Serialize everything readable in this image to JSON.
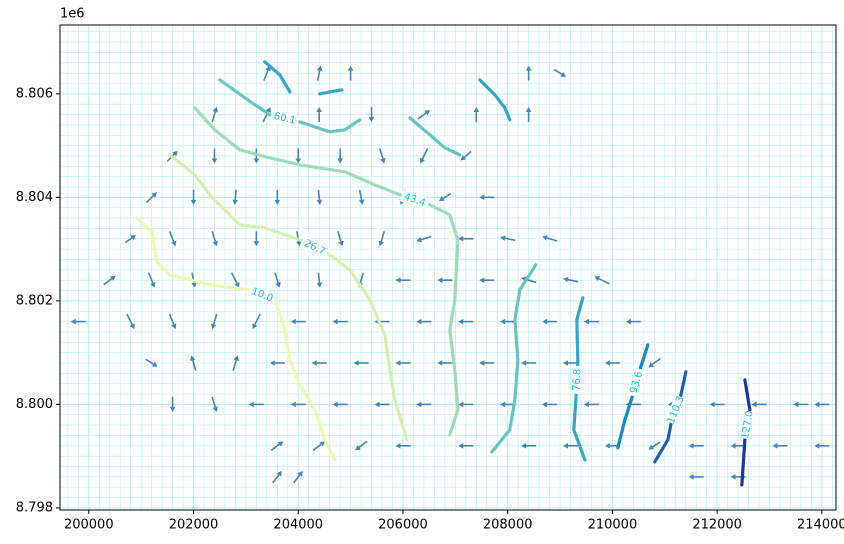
{
  "chart_data": {
    "type": "contour-quiver",
    "y_offset_label": "1e6",
    "xlim": [
      199450,
      214270
    ],
    "ylim": [
      8797960,
      8807330
    ],
    "xticks": [
      200000,
      202000,
      204000,
      206000,
      208000,
      210000,
      212000,
      214000
    ],
    "yticks": [
      {
        "value": 8798000,
        "label": "8.798"
      },
      {
        "value": 8800000,
        "label": "8.800"
      },
      {
        "value": 8802000,
        "label": "8.802"
      },
      {
        "value": 8804000,
        "label": "8.804"
      },
      {
        "value": 8806000,
        "label": "8.806"
      }
    ],
    "grid": true,
    "grid_color": "#b8eeee",
    "label_color": "#14c4d8",
    "arrow_color": "#4682b4",
    "series": [
      {
        "name": "10.0",
        "color": "#edf8b1",
        "x": [
          200917,
          201203,
          201299,
          201547,
          202311,
          203075,
          203552,
          203743,
          203839,
          204030,
          204317,
          204508,
          204699
        ],
        "y": [
          8803604,
          8803334,
          8802754,
          8802503,
          8802310,
          8802213,
          8802020,
          8801441,
          8800861,
          8800378,
          8799895,
          8799315,
          8798929
        ]
      },
      {
        "name": "26.7",
        "color": "#d3eeb0",
        "x": [
          201547,
          202024,
          202311,
          202884,
          203362,
          204030,
          204603,
          204985,
          205367,
          205654,
          205749,
          205845,
          206074
        ],
        "y": [
          8804821,
          8804435,
          8804049,
          8803469,
          8803411,
          8803179,
          8802889,
          8802600,
          8802020,
          8801344,
          8800668,
          8800088,
          8799315
        ]
      },
      {
        "name": "43.4",
        "color": "#9fd9bb",
        "x": [
          202024,
          202406,
          202884,
          203457,
          204030,
          204890,
          205462,
          205940,
          206513,
          206895,
          207048,
          206990,
          206895,
          206990,
          207048,
          206895
        ],
        "y": [
          8805729,
          8805304,
          8804918,
          8804763,
          8804628,
          8804493,
          8804242,
          8804049,
          8803855,
          8803662,
          8803179,
          8802020,
          8801441,
          8800668,
          8799895,
          8799412
        ]
      },
      {
        "name": "60.1",
        "color": "#68c2bf",
        "x": [
          202502,
          202980,
          203457,
          204030,
          204603,
          204890,
          205176,
          null,
          206131,
          206513,
          206800,
          207086,
          null,
          207697,
          208041,
          208137,
          208194,
          208137,
          208232,
          208538
        ],
        "y": [
          8806270,
          8805923,
          8805594,
          8805459,
          8805266,
          8805304,
          8805498,
          null,
          8805536,
          8805208,
          8804957,
          8804821,
          null,
          8799083,
          8799508,
          8800088,
          8800861,
          8801634,
          8802213,
          8802697
        ]
      },
      {
        "name": "76.8",
        "color": "#35a5c2",
        "x": [
          203361,
          203648,
          203839,
          null,
          204412,
          204833,
          null,
          207468,
          207755,
          207946,
          208041,
          null,
          209435,
          209320,
          209340,
          209302,
          209263,
          209474
        ],
        "y": [
          8806618,
          8806367,
          8806039,
          null,
          8806000,
          8806077,
          null,
          8806270,
          8805981,
          8805729,
          8805498,
          null,
          8802059,
          8801634,
          8800861,
          8800088,
          8799508,
          8798929
        ]
      },
      {
        "name": "93.6",
        "color": "#1d86bd",
        "x": [
          210677,
          210524,
          210390,
          210238,
          210104
        ],
        "y": [
          8801151,
          8800668,
          8800185,
          8799702,
          8799161
        ]
      },
      {
        "name": "110.3",
        "color": "#225ea8",
        "x": [
          211403,
          211288,
          211135,
          211059,
          210810
        ],
        "y": [
          8800629,
          8800088,
          8799702,
          8799315,
          8798890
        ]
      },
      {
        "name": "127.0",
        "color": "#253494",
        "x": [
          212530,
          212625,
          212530,
          212472
        ],
        "y": [
          8800474,
          8799895,
          8799315,
          8798446
        ]
      }
    ],
    "quiver": [
      [
        203400,
        8806400,
        0.4,
        1
      ],
      [
        204400,
        8806400,
        0.2,
        1
      ],
      [
        205000,
        8806400,
        0,
        1
      ],
      [
        208400,
        8806400,
        0,
        1
      ],
      [
        209000,
        8806400,
        0.8,
        -0.5
      ],
      [
        202400,
        8805600,
        0.3,
        1
      ],
      [
        203400,
        8805600,
        0.5,
        1
      ],
      [
        204400,
        8805600,
        0,
        1
      ],
      [
        205400,
        8805600,
        0,
        -1
      ],
      [
        206400,
        8805600,
        0.8,
        0.6
      ],
      [
        207400,
        8805600,
        0,
        1
      ],
      [
        208400,
        8805600,
        0,
        1
      ],
      [
        201600,
        8804800,
        0.7,
        0.7
      ],
      [
        202400,
        8804800,
        0,
        -1
      ],
      [
        203200,
        8804800,
        0,
        -1
      ],
      [
        204000,
        8804800,
        0,
        -1
      ],
      [
        204800,
        8804800,
        0,
        -1
      ],
      [
        205600,
        8804800,
        0.3,
        -1
      ],
      [
        206400,
        8804800,
        -0.5,
        -1
      ],
      [
        207200,
        8804800,
        -0.7,
        -0.6
      ],
      [
        201200,
        8804000,
        0.7,
        0.7
      ],
      [
        202000,
        8804000,
        0,
        -1
      ],
      [
        202800,
        8804000,
        -0.1,
        -1
      ],
      [
        203600,
        8804000,
        0,
        -1
      ],
      [
        204400,
        8804000,
        0.1,
        -1
      ],
      [
        205200,
        8804000,
        0.2,
        -1
      ],
      [
        206000,
        8804000,
        -0.3,
        -1
      ],
      [
        206800,
        8804000,
        -0.8,
        -0.5
      ],
      [
        207600,
        8804000,
        -1,
        0
      ],
      [
        200800,
        8803200,
        0.7,
        0.5
      ],
      [
        201600,
        8803200,
        0.4,
        -1
      ],
      [
        202400,
        8803200,
        0.3,
        -1
      ],
      [
        203200,
        8803200,
        0,
        -1
      ],
      [
        204000,
        8803200,
        0.2,
        -1
      ],
      [
        204800,
        8803200,
        0.3,
        -1
      ],
      [
        205600,
        8803200,
        -0.3,
        -1
      ],
      [
        206400,
        8803200,
        -1,
        -0.3
      ],
      [
        207200,
        8803200,
        -1,
        0
      ],
      [
        208000,
        8803200,
        -1,
        0.2
      ],
      [
        208800,
        8803200,
        -1,
        0.3
      ],
      [
        200400,
        8802400,
        0.8,
        0.6
      ],
      [
        201200,
        8802400,
        0.4,
        -1
      ],
      [
        202000,
        8802400,
        0.2,
        -1
      ],
      [
        202800,
        8802400,
        0.5,
        -1
      ],
      [
        203600,
        8802400,
        0.3,
        -1
      ],
      [
        204400,
        8802400,
        0.1,
        -1
      ],
      [
        205200,
        8802400,
        -0.3,
        -1
      ],
      [
        206000,
        8802400,
        -1,
        0
      ],
      [
        206800,
        8802400,
        -1,
        0
      ],
      [
        207600,
        8802400,
        -1,
        0
      ],
      [
        208400,
        8802400,
        -1,
        0.3
      ],
      [
        209200,
        8802400,
        -1,
        0.2
      ],
      [
        209800,
        8802400,
        -1,
        0.5
      ],
      [
        199800,
        8801600,
        -1,
        0
      ],
      [
        200800,
        8801600,
        0.5,
        -1
      ],
      [
        201600,
        8801600,
        0.4,
        -1
      ],
      [
        202400,
        8801600,
        -0.3,
        -1
      ],
      [
        203200,
        8801600,
        -0.5,
        -1
      ],
      [
        204000,
        8801600,
        -1,
        0
      ],
      [
        204800,
        8801600,
        -1,
        0
      ],
      [
        205600,
        8801600,
        -1,
        0
      ],
      [
        206400,
        8801600,
        -1,
        0
      ],
      [
        207200,
        8801600,
        -1,
        0
      ],
      [
        208000,
        8801600,
        -1,
        0
      ],
      [
        208800,
        8801600,
        -1,
        0
      ],
      [
        209600,
        8801600,
        -1,
        0
      ],
      [
        210400,
        8801600,
        -1,
        0
      ],
      [
        201200,
        8800800,
        0.8,
        -0.5
      ],
      [
        202000,
        8800800,
        -0.3,
        1
      ],
      [
        202800,
        8800800,
        0.3,
        1
      ],
      [
        203600,
        8800800,
        -1,
        0
      ],
      [
        204400,
        8800800,
        -1,
        0
      ],
      [
        205200,
        8800800,
        -1,
        0
      ],
      [
        206000,
        8800800,
        -1,
        0
      ],
      [
        206800,
        8800800,
        -1,
        0
      ],
      [
        207600,
        8800800,
        -1,
        0
      ],
      [
        208400,
        8800800,
        -1,
        0
      ],
      [
        209200,
        8800800,
        -1,
        0
      ],
      [
        210000,
        8800800,
        -1,
        0
      ],
      [
        210800,
        8800800,
        -0.8,
        -0.6
      ],
      [
        201600,
        8800000,
        0,
        -1
      ],
      [
        202400,
        8800000,
        0.3,
        -1
      ],
      [
        203200,
        8800000,
        -1,
        0
      ],
      [
        204000,
        8800000,
        -1,
        0
      ],
      [
        204800,
        8800000,
        -1,
        0
      ],
      [
        205600,
        8800000,
        -1,
        0
      ],
      [
        206400,
        8800000,
        -1,
        0
      ],
      [
        207200,
        8800000,
        -1,
        0
      ],
      [
        208000,
        8800000,
        -1,
        0
      ],
      [
        208800,
        8800000,
        -1,
        0
      ],
      [
        209600,
        8800000,
        -1,
        0
      ],
      [
        210400,
        8800000,
        -1,
        0
      ],
      [
        211200,
        8800000,
        -1,
        0
      ],
      [
        212000,
        8800000,
        -1,
        0
      ],
      [
        212800,
        8800000,
        -1,
        0
      ],
      [
        213600,
        8800000,
        -1,
        0
      ],
      [
        214000,
        8800000,
        -1,
        0
      ],
      [
        203600,
        8799200,
        0.8,
        0.6
      ],
      [
        204400,
        8799200,
        0.8,
        0.6
      ],
      [
        205200,
        8799200,
        -0.8,
        -0.6
      ],
      [
        206000,
        8799200,
        -1,
        0
      ],
      [
        207200,
        8799200,
        -1,
        0
      ],
      [
        208400,
        8799200,
        -1,
        0
      ],
      [
        209200,
        8799200,
        -1,
        0
      ],
      [
        210000,
        8799200,
        -1,
        0
      ],
      [
        210800,
        8799200,
        -0.8,
        -0.5
      ],
      [
        211600,
        8799200,
        -1,
        0
      ],
      [
        212400,
        8799200,
        -1,
        0
      ],
      [
        213200,
        8799200,
        -1,
        0
      ],
      [
        214000,
        8799200,
        -1,
        0
      ],
      [
        203600,
        8798600,
        0.6,
        0.8
      ],
      [
        204000,
        8798600,
        0.6,
        0.8
      ],
      [
        211600,
        8798600,
        -1,
        0
      ],
      [
        212400,
        8798600,
        -1,
        0
      ]
    ]
  }
}
